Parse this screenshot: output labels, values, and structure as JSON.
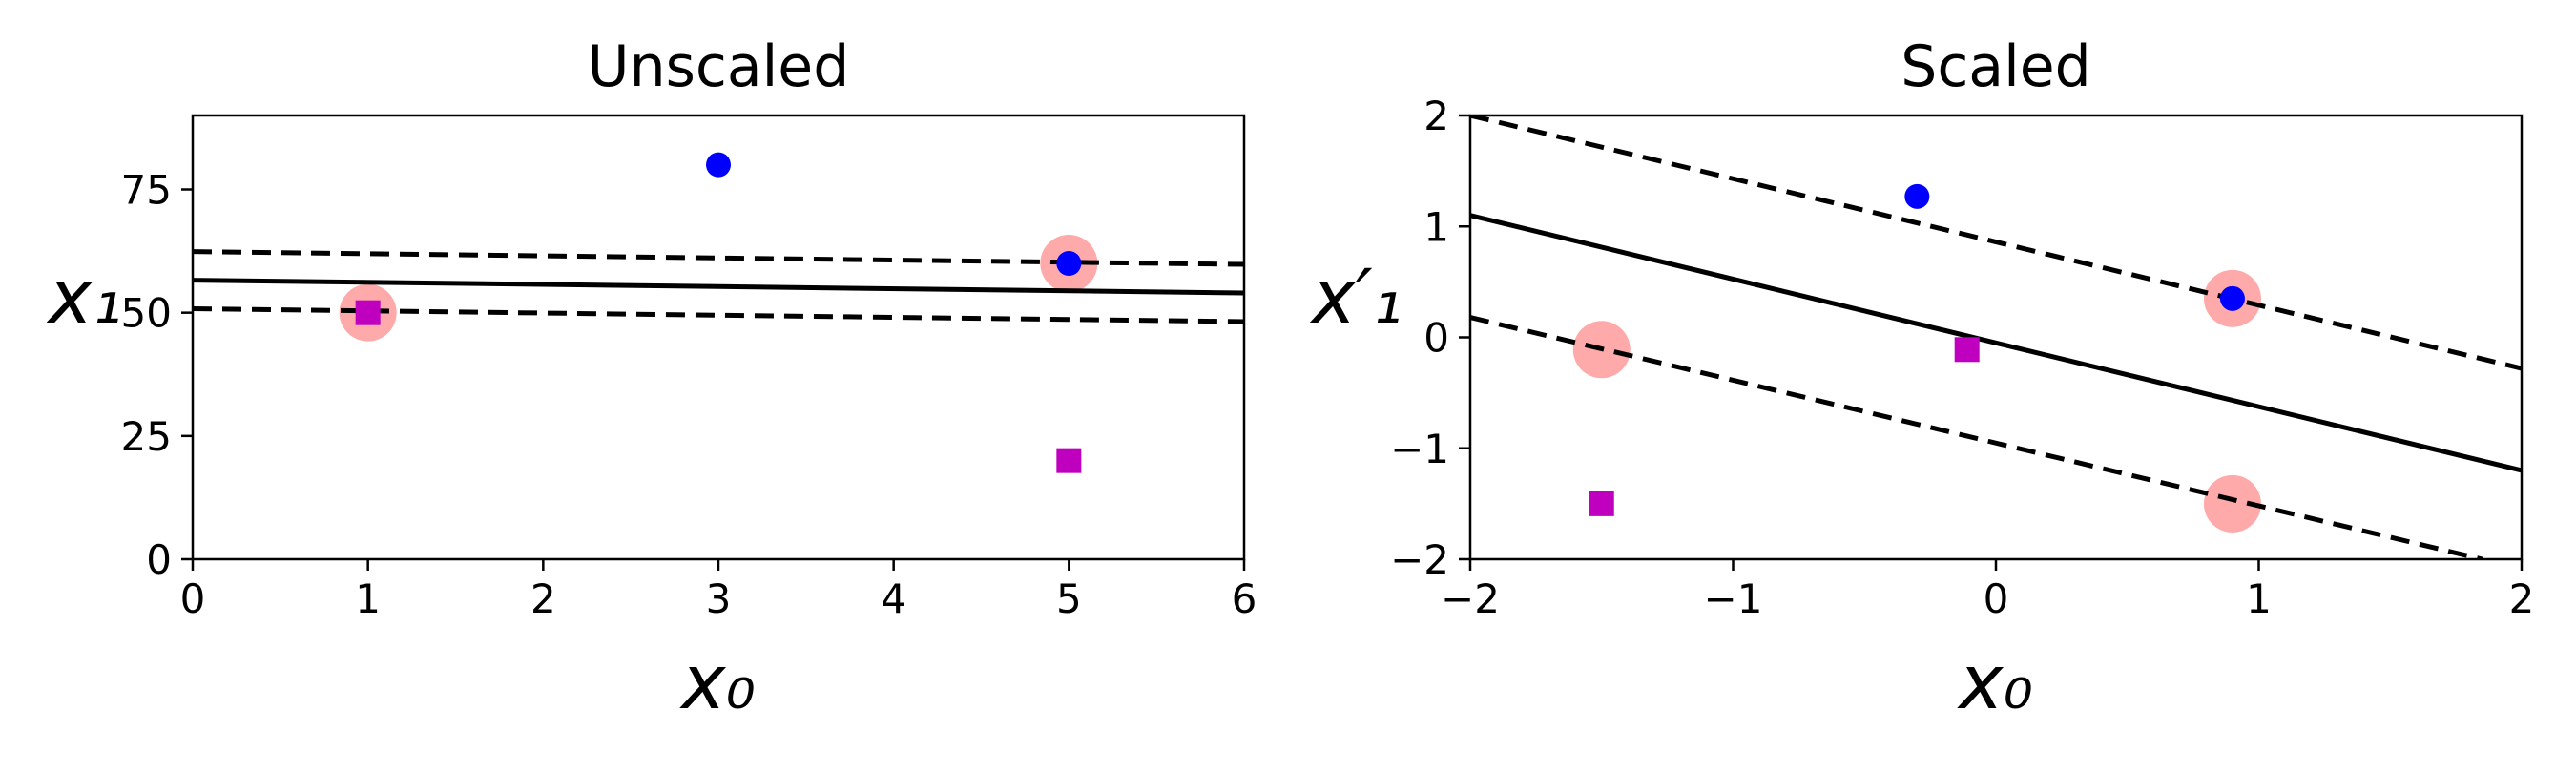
{
  "chart_data": [
    {
      "type": "scatter",
      "title": "Unscaled",
      "xlabel": "x₀",
      "ylabel": "x₁",
      "xlim": [
        0,
        6
      ],
      "ylim": [
        0,
        90
      ],
      "xticks": [
        "0",
        "1",
        "2",
        "3",
        "4",
        "5",
        "6"
      ],
      "yticks": [
        "0",
        "25",
        "50",
        "75"
      ],
      "series": [
        {
          "marker": "circle",
          "color": "#0000ff",
          "points": [
            [
              3,
              80
            ],
            [
              5,
              60
            ]
          ]
        },
        {
          "marker": "square",
          "color": "#bf00bf",
          "points": [
            [
              1,
              50
            ],
            [
              5,
              20
            ]
          ]
        }
      ],
      "support_vectors": {
        "color": "#ffaaaa",
        "points": [
          [
            1,
            50
          ],
          [
            5,
            60
          ]
        ]
      },
      "decision_boundary": {
        "color": "#000000",
        "style": "solid",
        "points": [
          [
            0,
            56.6
          ],
          [
            6,
            54.0
          ]
        ]
      },
      "margins": [
        {
          "style": "dashed",
          "points": [
            [
              0,
              62.4
            ],
            [
              6,
              59.8
            ]
          ]
        },
        {
          "style": "dashed",
          "points": [
            [
              0,
              50.8
            ],
            [
              6,
              48.2
            ]
          ]
        }
      ]
    },
    {
      "type": "scatter",
      "title": "Scaled",
      "xlabel": "x₀",
      "ylabel": "x′₁",
      "xlim": [
        -2,
        2
      ],
      "ylim": [
        -2,
        2
      ],
      "xticks": [
        "−2",
        "−1",
        "0",
        "1",
        "2"
      ],
      "yticks": [
        "−2",
        "−1",
        "0",
        "1",
        "2"
      ],
      "series": [
        {
          "marker": "circle",
          "color": "#0000ff",
          "points": [
            [
              -0.3,
              1.27
            ],
            [
              0.9,
              0.35
            ]
          ]
        },
        {
          "marker": "square",
          "color": "#bf00bf",
          "points": [
            [
              -0.11,
              -0.11
            ],
            [
              -1.5,
              -1.5
            ]
          ]
        }
      ],
      "support_vectors": {
        "color": "#ffaaaa",
        "points": [
          [
            -1.5,
            -0.11
          ],
          [
            0.9,
            0.35
          ],
          [
            0.9,
            -1.5
          ]
        ]
      },
      "decision_boundary": {
        "color": "#000000",
        "style": "solid",
        "points": [
          [
            -2,
            1.1
          ],
          [
            2,
            -1.2
          ]
        ]
      },
      "margins": [
        {
          "style": "dashed",
          "points": [
            [
              -2,
              2.0
            ],
            [
              2,
              -0.28
            ]
          ]
        },
        {
          "style": "dashed",
          "points": [
            [
              -2,
              0.18
            ],
            [
              1.85,
              -2.0
            ]
          ]
        }
      ]
    }
  ]
}
